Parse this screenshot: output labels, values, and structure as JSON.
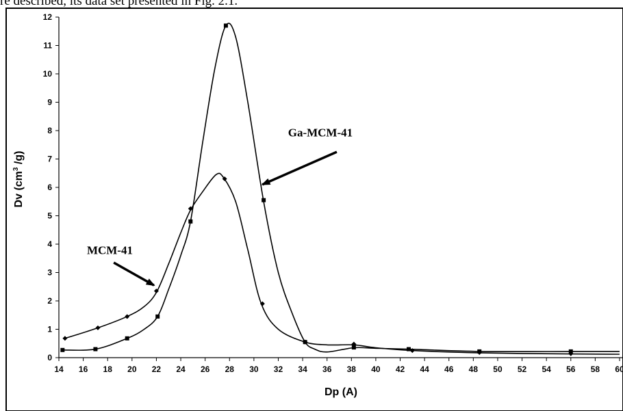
{
  "header_text": "re described, its data set presented in Fig. 2.1.",
  "chart_data": {
    "type": "line",
    "title": "",
    "xlabel": "Dp (A)",
    "ylabel_main": "Dv (cm",
    "ylabel_sup": "3",
    "ylabel_tail": " /g)",
    "xlim": [
      14,
      60
    ],
    "ylim": [
      0,
      12
    ],
    "x_ticks": [
      "14",
      "16",
      "18",
      "20",
      "22",
      "24",
      "26",
      "28",
      "30",
      "32",
      "34",
      "36",
      "38",
      "40",
      "42",
      "44",
      "46",
      "48",
      "50",
      "52",
      "54",
      "56",
      "58",
      "60"
    ],
    "y_ticks": [
      "0",
      "1",
      "2",
      "3",
      "4",
      "5",
      "6",
      "7",
      "8",
      "9",
      "10",
      "11",
      "12"
    ],
    "series": [
      {
        "name": "MCM-41",
        "marker": "diamond",
        "color": "#000000",
        "points": [
          [
            14.5,
            0.68
          ],
          [
            17.2,
            1.05
          ],
          [
            19.6,
            1.45
          ],
          [
            21.0,
            1.8
          ],
          [
            22.0,
            2.3
          ],
          [
            23.0,
            3.3
          ],
          [
            24.0,
            4.4
          ],
          [
            24.8,
            5.2
          ],
          [
            25.8,
            5.85
          ],
          [
            26.9,
            6.45
          ],
          [
            27.5,
            6.35
          ],
          [
            28.5,
            5.5
          ],
          [
            29.5,
            3.8
          ],
          [
            30.6,
            1.9
          ],
          [
            32.0,
            1.0
          ],
          [
            34.2,
            0.55
          ],
          [
            36.0,
            0.45
          ],
          [
            38.2,
            0.45
          ],
          [
            40.0,
            0.35
          ],
          [
            43.0,
            0.25
          ],
          [
            48.5,
            0.17
          ],
          [
            56.0,
            0.13
          ],
          [
            60.0,
            0.12
          ]
        ],
        "marker_points": [
          [
            14.5,
            0.68
          ],
          [
            17.2,
            1.05
          ],
          [
            19.6,
            1.45
          ],
          [
            22.0,
            2.35
          ],
          [
            24.8,
            5.25
          ],
          [
            27.6,
            6.3
          ],
          [
            30.7,
            1.9
          ],
          [
            34.2,
            0.55
          ],
          [
            38.2,
            0.48
          ],
          [
            43.0,
            0.25
          ],
          [
            48.5,
            0.18
          ],
          [
            56.0,
            0.14
          ]
        ]
      },
      {
        "name": "Ga-MCM-41",
        "marker": "square",
        "color": "#000000",
        "points": [
          [
            14.3,
            0.27
          ],
          [
            17.0,
            0.3
          ],
          [
            19.6,
            0.68
          ],
          [
            21.0,
            1.0
          ],
          [
            22.1,
            1.45
          ],
          [
            23.0,
            2.4
          ],
          [
            24.0,
            3.6
          ],
          [
            24.8,
            4.8
          ],
          [
            25.8,
            7.6
          ],
          [
            26.8,
            10.2
          ],
          [
            27.7,
            11.7
          ],
          [
            28.5,
            11.3
          ],
          [
            29.5,
            9.0
          ],
          [
            30.8,
            5.5
          ],
          [
            32.0,
            3.0
          ],
          [
            33.2,
            1.5
          ],
          [
            34.2,
            0.55
          ],
          [
            35.0,
            0.3
          ],
          [
            36.0,
            0.2
          ],
          [
            38.2,
            0.35
          ],
          [
            40.0,
            0.33
          ],
          [
            42.7,
            0.3
          ],
          [
            48.5,
            0.22
          ],
          [
            56.0,
            0.22
          ],
          [
            60.0,
            0.22
          ]
        ],
        "marker_points": [
          [
            14.3,
            0.27
          ],
          [
            17.0,
            0.3
          ],
          [
            19.6,
            0.68
          ],
          [
            22.1,
            1.45
          ],
          [
            24.8,
            4.8
          ],
          [
            27.7,
            11.7
          ],
          [
            30.8,
            5.55
          ],
          [
            34.2,
            0.55
          ],
          [
            38.2,
            0.36
          ],
          [
            42.7,
            0.3
          ],
          [
            48.5,
            0.22
          ],
          [
            56.0,
            0.22
          ]
        ]
      }
    ],
    "annotations": [
      {
        "text": "MCM-41",
        "tx": 16.3,
        "ty": 3.65,
        "ax0": 18.5,
        "ay0": 3.35,
        "ax1": 21.8,
        "ay1": 2.55
      },
      {
        "text": "Ga-MCM-41",
        "tx": 32.8,
        "ty": 7.8,
        "ax0": 36.8,
        "ay0": 7.25,
        "ax1": 30.7,
        "ay1": 6.1
      }
    ],
    "grid": false,
    "legend": "none"
  }
}
